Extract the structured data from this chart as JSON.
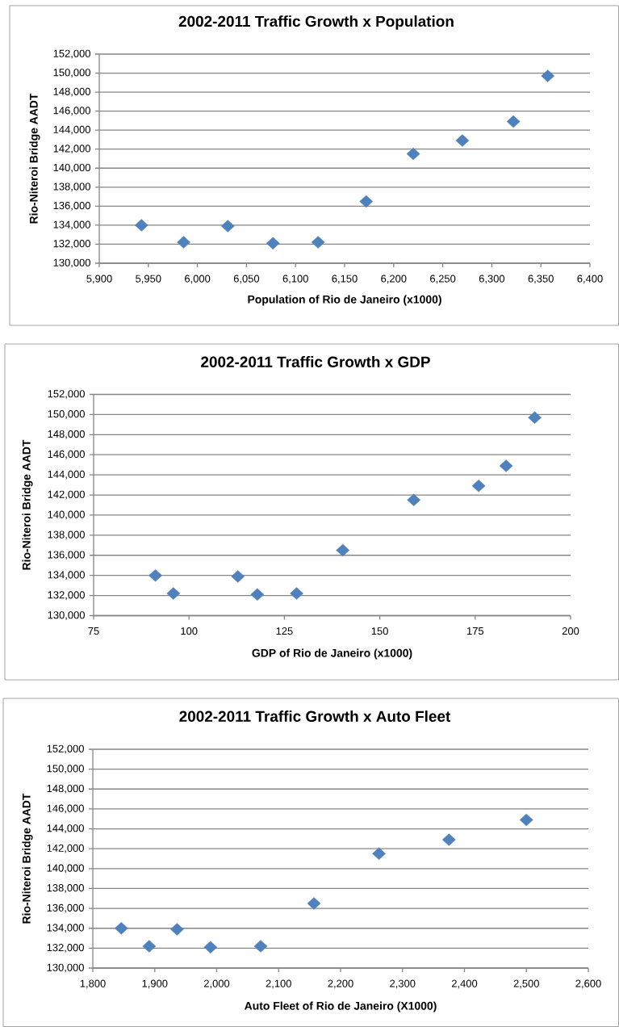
{
  "chart_data": [
    {
      "type": "scatter",
      "title": "2002-2011 Traffic Growth x Population",
      "xlabel": "Population of Rio de Janeiro (x1000)",
      "ylabel": "Rio-Niteroi Bridge AADT",
      "x": [
        5943,
        5986,
        6031,
        6077,
        6123,
        6172,
        6220,
        6270,
        6322,
        6357
      ],
      "values": [
        134000,
        132200,
        133900,
        132100,
        132200,
        136500,
        141500,
        142900,
        144900,
        149700
      ],
      "color": "#4f81bd",
      "marker": "diamond",
      "grid": "y",
      "xlim": [
        5900,
        6400
      ],
      "xticks": [
        {
          "value": 5900,
          "label": "5,900"
        },
        {
          "value": 5950,
          "label": "5,950"
        },
        {
          "value": 6000,
          "label": "6,000"
        },
        {
          "value": 6050,
          "label": "6,050"
        },
        {
          "value": 6100,
          "label": "6,100"
        },
        {
          "value": 6150,
          "label": "6,150"
        },
        {
          "value": 6200,
          "label": "6,200"
        },
        {
          "value": 6250,
          "label": "6,250"
        },
        {
          "value": 6300,
          "label": "6,300"
        },
        {
          "value": 6350,
          "label": "6,350"
        },
        {
          "value": 6400,
          "label": "6,400"
        }
      ],
      "ylim": [
        130000,
        152000
      ],
      "yticks": [
        {
          "value": 130000,
          "label": "130,000"
        },
        {
          "value": 132000,
          "label": "132,000"
        },
        {
          "value": 134000,
          "label": "134,000"
        },
        {
          "value": 136000,
          "label": "136,000"
        },
        {
          "value": 138000,
          "label": "138,000"
        },
        {
          "value": 140000,
          "label": "140,000"
        },
        {
          "value": 142000,
          "label": "142,000"
        },
        {
          "value": 144000,
          "label": "144,000"
        },
        {
          "value": 146000,
          "label": "146,000"
        },
        {
          "value": 148000,
          "label": "148,000"
        },
        {
          "value": 150000,
          "label": "150,000"
        },
        {
          "value": 152000,
          "label": "152,000"
        }
      ]
    },
    {
      "type": "scatter",
      "title": "2002-2011 Traffic Growth x GDP",
      "xlabel": "GDP of Rio de Janeiro (x1000)",
      "ylabel": "Rio-Niteroi Bridge AADT",
      "x": [
        91.2,
        95.9,
        112.8,
        117.9,
        128.2,
        140.3,
        158.9,
        175.9,
        183.1,
        190.6
      ],
      "values": [
        134000,
        132200,
        133900,
        132100,
        132200,
        136500,
        141500,
        142900,
        144900,
        149700
      ],
      "color": "#4f81bd",
      "marker": "diamond",
      "grid": "y",
      "xlim": [
        75,
        200
      ],
      "xticks": [
        75,
        100,
        125,
        150,
        175,
        200
      ],
      "ylim": [
        130000,
        152000
      ],
      "yticks": [
        {
          "value": 130000,
          "label": "130,000"
        },
        {
          "value": 132000,
          "label": "132,000"
        },
        {
          "value": 134000,
          "label": "134,000"
        },
        {
          "value": 136000,
          "label": "136,000"
        },
        {
          "value": 138000,
          "label": "138,000"
        },
        {
          "value": 140000,
          "label": "140,000"
        },
        {
          "value": 142000,
          "label": "142,000"
        },
        {
          "value": 144000,
          "label": "144,000"
        },
        {
          "value": 146000,
          "label": "146,000"
        },
        {
          "value": 148000,
          "label": "148,000"
        },
        {
          "value": 150000,
          "label": "150,000"
        },
        {
          "value": 152000,
          "label": "152,000"
        }
      ]
    },
    {
      "type": "scatter",
      "title": "2002-2011 Traffic Growth x Auto Fleet",
      "xlabel": "Auto Fleet of Rio de Janeiro (X1000)",
      "ylabel": "Rio-Niteroi Bridge AADT",
      "x": [
        1846,
        1891,
        1936,
        1990,
        2071,
        2157,
        2262,
        2375,
        2500
      ],
      "values": [
        134000,
        132200,
        133900,
        132100,
        132200,
        136500,
        141500,
        142900,
        144900
      ],
      "color": "#4f81bd",
      "marker": "diamond",
      "grid": "y",
      "xlim": [
        1800,
        2600
      ],
      "xticks": [
        {
          "value": 1800,
          "label": "1,800"
        },
        {
          "value": 1900,
          "label": "1,900"
        },
        {
          "value": 2000,
          "label": "2,000"
        },
        {
          "value": 2100,
          "label": "2,100"
        },
        {
          "value": 2200,
          "label": "2,200"
        },
        {
          "value": 2300,
          "label": "2,300"
        },
        {
          "value": 2400,
          "label": "2,400"
        },
        {
          "value": 2500,
          "label": "2,500"
        },
        {
          "value": 2600,
          "label": "2,600"
        }
      ],
      "ylim": [
        130000,
        152000
      ],
      "yticks": [
        {
          "value": 130000,
          "label": "130,000"
        },
        {
          "value": 132000,
          "label": "132,000"
        },
        {
          "value": 134000,
          "label": "134,000"
        },
        {
          "value": 136000,
          "label": "136,000"
        },
        {
          "value": 138000,
          "label": "138,000"
        },
        {
          "value": 140000,
          "label": "140,000"
        },
        {
          "value": 142000,
          "label": "142,000"
        },
        {
          "value": 144000,
          "label": "144,000"
        },
        {
          "value": 146000,
          "label": "146,000"
        },
        {
          "value": 148000,
          "label": "148,000"
        },
        {
          "value": 150000,
          "label": "150,000"
        },
        {
          "value": 152000,
          "label": "152,000"
        }
      ]
    }
  ]
}
